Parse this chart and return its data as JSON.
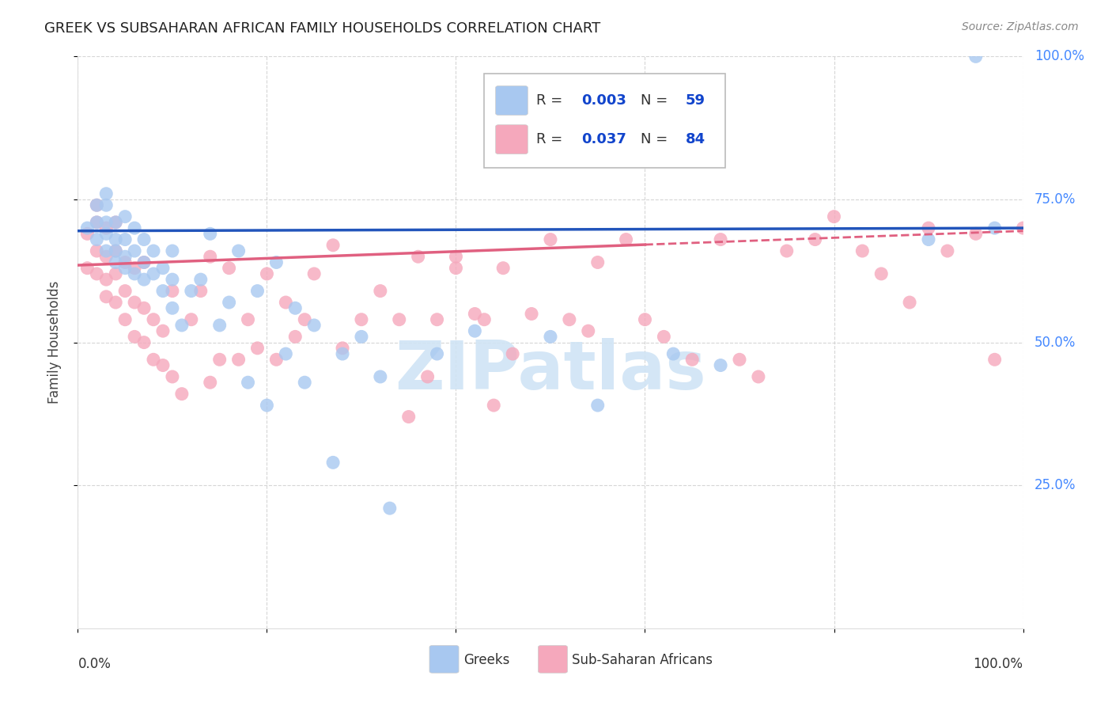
{
  "title": "GREEK VS SUBSAHARAN AFRICAN FAMILY HOUSEHOLDS CORRELATION CHART",
  "source": "Source: ZipAtlas.com",
  "ylabel": "Family Households",
  "xlim": [
    0,
    1
  ],
  "ylim": [
    0,
    1
  ],
  "ytick_labels": [
    "25.0%",
    "50.0%",
    "75.0%",
    "100.0%"
  ],
  "ytick_values": [
    0.25,
    0.5,
    0.75,
    1.0
  ],
  "xtick_values": [
    0.0,
    0.2,
    0.4,
    0.6,
    0.8,
    1.0
  ],
  "blue_color": "#A8C8F0",
  "pink_color": "#F5A8BC",
  "blue_line_color": "#2255BB",
  "pink_line_color": "#E06080",
  "watermark_color": "#D0E4F5",
  "background_color": "#FFFFFF",
  "greek_x": [
    0.01,
    0.02,
    0.02,
    0.02,
    0.03,
    0.03,
    0.03,
    0.03,
    0.03,
    0.04,
    0.04,
    0.04,
    0.04,
    0.05,
    0.05,
    0.05,
    0.05,
    0.06,
    0.06,
    0.06,
    0.07,
    0.07,
    0.07,
    0.08,
    0.08,
    0.09,
    0.09,
    0.1,
    0.1,
    0.1,
    0.11,
    0.12,
    0.13,
    0.14,
    0.15,
    0.16,
    0.17,
    0.18,
    0.19,
    0.2,
    0.21,
    0.22,
    0.23,
    0.24,
    0.25,
    0.27,
    0.28,
    0.3,
    0.32,
    0.33,
    0.38,
    0.42,
    0.5,
    0.55,
    0.63,
    0.68,
    0.9,
    0.95,
    0.97
  ],
  "greek_y": [
    0.7,
    0.68,
    0.71,
    0.74,
    0.66,
    0.69,
    0.71,
    0.74,
    0.76,
    0.64,
    0.66,
    0.68,
    0.71,
    0.63,
    0.65,
    0.68,
    0.72,
    0.62,
    0.66,
    0.7,
    0.61,
    0.64,
    0.68,
    0.62,
    0.66,
    0.59,
    0.63,
    0.56,
    0.61,
    0.66,
    0.53,
    0.59,
    0.61,
    0.69,
    0.53,
    0.57,
    0.66,
    0.43,
    0.59,
    0.39,
    0.64,
    0.48,
    0.56,
    0.43,
    0.53,
    0.29,
    0.48,
    0.51,
    0.44,
    0.21,
    0.48,
    0.52,
    0.51,
    0.39,
    0.48,
    0.46,
    0.68,
    1.0,
    0.7
  ],
  "subsaharan_x": [
    0.01,
    0.01,
    0.02,
    0.02,
    0.02,
    0.02,
    0.03,
    0.03,
    0.03,
    0.03,
    0.04,
    0.04,
    0.04,
    0.04,
    0.05,
    0.05,
    0.05,
    0.06,
    0.06,
    0.06,
    0.07,
    0.07,
    0.07,
    0.08,
    0.08,
    0.09,
    0.09,
    0.1,
    0.1,
    0.11,
    0.12,
    0.13,
    0.14,
    0.14,
    0.15,
    0.16,
    0.17,
    0.18,
    0.19,
    0.2,
    0.21,
    0.22,
    0.23,
    0.24,
    0.25,
    0.27,
    0.28,
    0.3,
    0.32,
    0.34,
    0.36,
    0.38,
    0.4,
    0.43,
    0.45,
    0.48,
    0.5,
    0.52,
    0.55,
    0.58,
    0.6,
    0.62,
    0.65,
    0.68,
    0.7,
    0.72,
    0.75,
    0.78,
    0.8,
    0.83,
    0.85,
    0.88,
    0.9,
    0.92,
    0.95,
    0.97,
    1.0,
    0.35,
    0.37,
    0.4,
    0.42,
    0.44,
    0.46,
    0.54
  ],
  "subsaharan_y": [
    0.69,
    0.63,
    0.62,
    0.66,
    0.71,
    0.74,
    0.58,
    0.61,
    0.65,
    0.7,
    0.57,
    0.62,
    0.66,
    0.71,
    0.54,
    0.59,
    0.64,
    0.51,
    0.57,
    0.63,
    0.5,
    0.56,
    0.64,
    0.47,
    0.54,
    0.46,
    0.52,
    0.44,
    0.59,
    0.41,
    0.54,
    0.59,
    0.43,
    0.65,
    0.47,
    0.63,
    0.47,
    0.54,
    0.49,
    0.62,
    0.47,
    0.57,
    0.51,
    0.54,
    0.62,
    0.67,
    0.49,
    0.54,
    0.59,
    0.54,
    0.65,
    0.54,
    0.63,
    0.54,
    0.63,
    0.55,
    0.68,
    0.54,
    0.64,
    0.68,
    0.54,
    0.51,
    0.47,
    0.68,
    0.47,
    0.44,
    0.66,
    0.68,
    0.72,
    0.66,
    0.62,
    0.57,
    0.7,
    0.66,
    0.69,
    0.47,
    0.7,
    0.37,
    0.44,
    0.65,
    0.55,
    0.39,
    0.48,
    0.52
  ],
  "blue_line_y0": 0.695,
  "blue_line_y1": 0.7,
  "pink_line_y0": 0.635,
  "pink_line_y1": 0.695,
  "pink_line_solid_end": 0.6
}
